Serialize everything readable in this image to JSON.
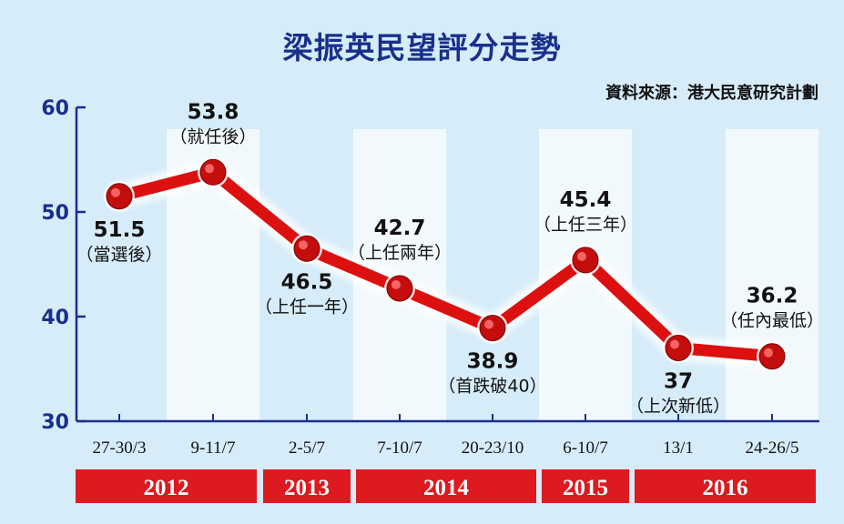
{
  "title": "梁振英民望評分走勢",
  "source": "資料來源：港大民意研究計劃",
  "colors": {
    "background": "#d6ecf8",
    "band": "#f2f9fd",
    "axis": "#1a2f8c",
    "line": "#dd1010",
    "year_box": "#dc1a1f",
    "title": "#1a2f8c"
  },
  "chart_data": {
    "type": "line",
    "title": "梁振英民望評分走勢",
    "xlabel": "",
    "ylabel": "",
    "ylim": [
      30,
      60
    ],
    "yticks": [
      "30",
      "40",
      "50",
      "60"
    ],
    "categories": [
      "27-30/3",
      "9-11/7",
      "2-5/7",
      "7-10/7",
      "20-23/10",
      "6-10/7",
      "13/1",
      "24-26/5"
    ],
    "series": [
      {
        "values": [
          51.5,
          53.8,
          46.5,
          42.7,
          38.9,
          45.4,
          37,
          36.2
        ]
      }
    ],
    "value_labels": [
      "51.5",
      "53.8",
      "46.5",
      "42.7",
      "38.9",
      "45.4",
      "37",
      "36.2"
    ],
    "annotations": [
      "（當選後）",
      "（就任後）",
      "（上任一年）",
      "（上任兩年）",
      "（首跌破40）",
      "（上任三年）",
      "（上次新低）",
      "（任內最低）"
    ],
    "years": [
      {
        "label": "2012",
        "from": 0,
        "to": 1
      },
      {
        "label": "2013",
        "from": 2,
        "to": 2
      },
      {
        "label": "2014",
        "from": 3,
        "to": 4
      },
      {
        "label": "2015",
        "from": 5,
        "to": 5
      },
      {
        "label": "2016",
        "from": 6,
        "to": 7
      }
    ],
    "grid": false,
    "legend": "none"
  }
}
